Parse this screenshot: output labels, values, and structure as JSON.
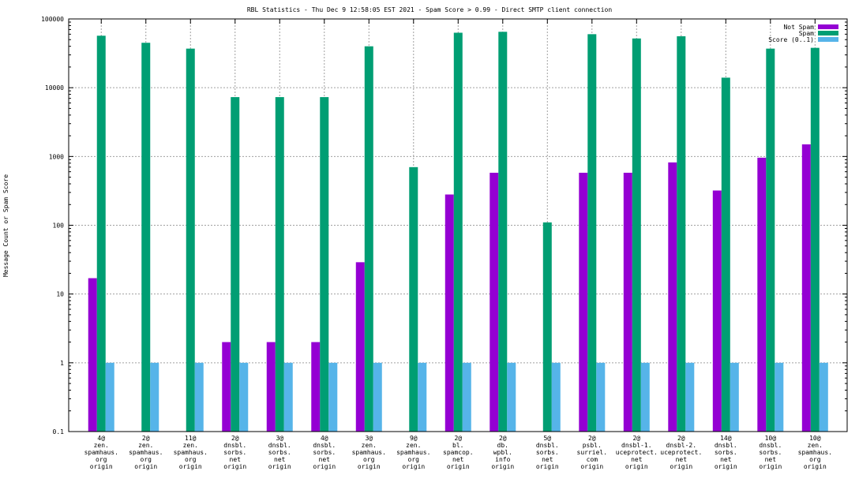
{
  "chart_data": {
    "type": "bar",
    "title": "RBL Statistics - Thu Dec  9 12:58:05 EST 2021 - Spam Score > 0.99 - Direct SMTP client connection",
    "xlabel": "",
    "ylabel": "Message Count or Spam Score",
    "yscale": "log",
    "ylim": [
      0.1,
      100000
    ],
    "yticks": [
      "0.1",
      "1",
      "10",
      "100",
      "1000",
      "10000",
      "100000"
    ],
    "grid": true,
    "legend_position": "top-right",
    "categories": [
      [
        "4@",
        "zen.",
        "spamhaus.",
        "org",
        "origin"
      ],
      [
        "2@",
        "zen.",
        "spamhaus.",
        "org",
        "origin"
      ],
      [
        "11@",
        "zen.",
        "spamhaus.",
        "org",
        "origin"
      ],
      [
        "2@",
        "dnsbl.",
        "sorbs.",
        "net",
        "origin"
      ],
      [
        "3@",
        "dnsbl.",
        "sorbs.",
        "net",
        "origin"
      ],
      [
        "4@",
        "dnsbl.",
        "sorbs.",
        "net",
        "origin"
      ],
      [
        "3@",
        "zen.",
        "spamhaus.",
        "org",
        "origin"
      ],
      [
        "9@",
        "zen.",
        "spamhaus.",
        "org",
        "origin"
      ],
      [
        "2@",
        "bl.",
        "spamcop.",
        "net",
        "origin"
      ],
      [
        "2@",
        "db.",
        "wpbl.",
        "info",
        "origin"
      ],
      [
        "5@",
        "dnsbl.",
        "sorbs.",
        "net",
        "origin"
      ],
      [
        "2@",
        "psbl.",
        "surriel.",
        "com",
        "origin"
      ],
      [
        "2@",
        "dnsbl-1.",
        "uceprotect.",
        "net",
        "origin"
      ],
      [
        "2@",
        "dnsbl-2.",
        "uceprotect.",
        "net",
        "origin"
      ],
      [
        "14@",
        "dnsbl.",
        "sorbs.",
        "net",
        "origin"
      ],
      [
        "10@",
        "dnsbl.",
        "sorbs.",
        "net",
        "origin"
      ],
      [
        "10@",
        "zen.",
        "spamhaus.",
        "org",
        "origin"
      ]
    ],
    "series": [
      {
        "name": "Not Spam",
        "color": "#9400d3",
        "values": [
          17,
          null,
          null,
          2,
          2,
          2,
          29,
          null,
          280,
          580,
          null,
          580,
          580,
          820,
          320,
          960,
          1500
        ]
      },
      {
        "name": "Spam",
        "color": "#009e73",
        "values": [
          57000,
          45000,
          37000,
          7300,
          7300,
          7300,
          40000,
          700,
          63000,
          65000,
          110,
          60000,
          52000,
          56000,
          14000,
          37000,
          38000
        ]
      },
      {
        "name": "Score (0..1)",
        "color": "#56b4e9",
        "values": [
          1,
          1,
          1,
          1,
          1,
          1,
          1,
          1,
          1,
          1,
          1,
          1,
          1,
          1,
          1,
          1,
          1
        ]
      }
    ]
  }
}
